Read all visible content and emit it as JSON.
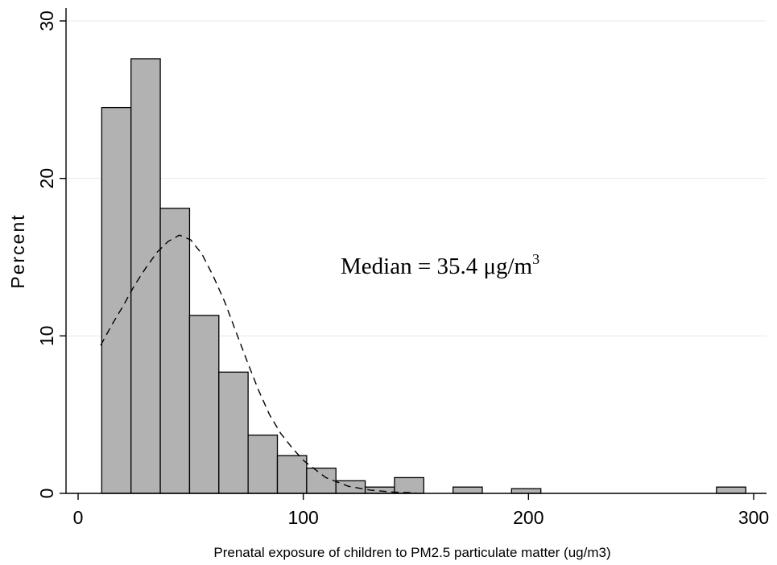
{
  "chart_data": {
    "type": "bar",
    "title": "",
    "xlabel": "Prenatal exposure of children to PM2.5 particulate matter (ug/m3)",
    "ylabel": "Percent",
    "xlim": [
      0,
      300
    ],
    "ylim": [
      0,
      30
    ],
    "xticks": [
      "0",
      "100",
      "200",
      "300"
    ],
    "yticks": [
      "0",
      "10",
      "20",
      "30"
    ],
    "grid": "horizontal",
    "bins": [
      {
        "x0": 10.5,
        "x1": 23.5,
        "value": 24.5
      },
      {
        "x0": 23.5,
        "x1": 36.5,
        "value": 27.6
      },
      {
        "x0": 36.5,
        "x1": 49.5,
        "value": 18.1
      },
      {
        "x0": 49.5,
        "x1": 62.5,
        "value": 11.3
      },
      {
        "x0": 62.5,
        "x1": 75.5,
        "value": 7.7
      },
      {
        "x0": 75.5,
        "x1": 88.5,
        "value": 3.7
      },
      {
        "x0": 88.5,
        "x1": 101.5,
        "value": 2.4
      },
      {
        "x0": 101.5,
        "x1": 114.5,
        "value": 1.6
      },
      {
        "x0": 114.5,
        "x1": 127.5,
        "value": 0.8
      },
      {
        "x0": 127.5,
        "x1": 140.5,
        "value": 0.4
      },
      {
        "x0": 140.5,
        "x1": 153.5,
        "value": 1.0
      },
      {
        "x0": 166.5,
        "x1": 179.5,
        "value": 0.4
      },
      {
        "x0": 192.5,
        "x1": 205.5,
        "value": 0.3
      },
      {
        "x0": 283.5,
        "x1": 296.5,
        "value": 0.4
      }
    ],
    "density_curve": {
      "style": "dashed",
      "x": [
        10,
        15,
        20,
        25,
        30,
        35,
        40,
        45,
        50,
        55,
        60,
        65,
        70,
        75,
        80,
        85,
        90,
        95,
        100,
        110,
        120,
        130,
        140,
        150
      ],
      "y": [
        9.4,
        10.7,
        11.9,
        13.2,
        14.3,
        15.3,
        16.0,
        16.4,
        16.1,
        15.2,
        13.8,
        12.2,
        10.3,
        8.4,
        6.6,
        5.0,
        3.8,
        2.9,
        2.1,
        1.0,
        0.45,
        0.2,
        0.08,
        0.03
      ]
    },
    "annotation": {
      "text": "Median = 35.4 μg/m",
      "superscript": "3"
    },
    "colors": {
      "bar_fill": "#b2b2b2",
      "bar_stroke": "#000000",
      "grid": "#eaeaea"
    }
  }
}
